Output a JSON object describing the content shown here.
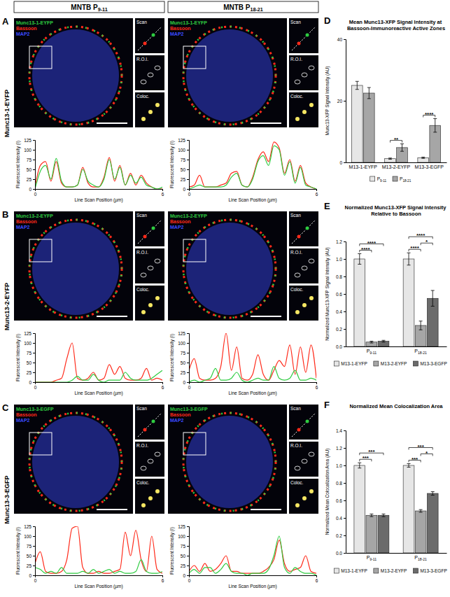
{
  "figure": {
    "columns": [
      "MNTB P9-11",
      "MNTB P18-21"
    ],
    "panels": [
      {
        "letter": "A",
        "row_label": "Munc13-1-EYFP",
        "channels": [
          {
            "name": "Munc13-1-EYFP",
            "color": "#2ecc40"
          },
          {
            "name": "Bassoon",
            "color": "#ff2a1a"
          },
          {
            "name": "MAP2",
            "color": "#3b4bff"
          }
        ],
        "insets": [
          "Scan",
          "R.O.I.",
          "Coloc."
        ]
      },
      {
        "letter": "B",
        "row_label": "Munc13-2-EYFP",
        "channels": [
          {
            "name": "Munc13-2-EYFP",
            "color": "#2ecc40"
          },
          {
            "name": "Bassoon",
            "color": "#ff2a1a"
          },
          {
            "name": "MAP2",
            "color": "#3b4bff"
          }
        ],
        "insets": [
          "Scan",
          "R.O.I.",
          "Coloc."
        ]
      },
      {
        "letter": "C",
        "row_label": "Munc13-3-EGFP",
        "channels": [
          {
            "name": "Munc13-3-EGFP",
            "color": "#2ecc40"
          },
          {
            "name": "Bassoon",
            "color": "#ff2a1a"
          },
          {
            "name": "MAP2",
            "color": "#3b4bff"
          }
        ],
        "insets": [
          "Scan",
          "R.O.I.",
          "Coloc."
        ]
      }
    ],
    "chart_letters": [
      "D",
      "E",
      "F"
    ]
  },
  "chart_data": [
    {
      "type": "line",
      "x_label": "Line Scan Position (µm)",
      "y_label": "Fluorescent Intensity (I)",
      "x": [
        0,
        0.25,
        0.5,
        0.75,
        1,
        1.25,
        1.5,
        1.75,
        2,
        2.25,
        2.5,
        2.75,
        3,
        3.25,
        3.5,
        3.75,
        4,
        4.25,
        4.5,
        4.75,
        5,
        5.25,
        5.5,
        5.75,
        6
      ],
      "series": [
        {
          "color": "#ff2a1a",
          "values": [
            5,
            60,
            70,
            20,
            70,
            15,
            5,
            5,
            10,
            55,
            15,
            5,
            5,
            30,
            80,
            20,
            60,
            10,
            40,
            10,
            35,
            15,
            5,
            0,
            0
          ]
        },
        {
          "color": "#2ecc40",
          "values": [
            0,
            45,
            60,
            25,
            78,
            20,
            5,
            5,
            10,
            50,
            20,
            10,
            5,
            25,
            75,
            25,
            55,
            10,
            35,
            15,
            30,
            10,
            5,
            0,
            5
          ]
        }
      ],
      "xlim": [
        0,
        6
      ],
      "xticks": [
        0,
        6
      ],
      "ylim": [
        0,
        125
      ],
      "yticks": [
        0,
        25,
        50,
        75,
        100,
        125
      ]
    },
    {
      "type": "line",
      "x_label": "Line Scan Position (µm)",
      "y_label": "Fluorescent Intensity (I)",
      "x": [
        0,
        0.25,
        0.5,
        0.75,
        1,
        1.25,
        1.5,
        1.75,
        2,
        2.25,
        2.5,
        2.75,
        3,
        3.25,
        3.5,
        3.75,
        4,
        4.25,
        4.5,
        4.75,
        5,
        5.25,
        5.5,
        5.75,
        6
      ],
      "series": [
        {
          "color": "#ff2a1a",
          "values": [
            5,
            10,
            35,
            5,
            5,
            5,
            10,
            15,
            40,
            45,
            10,
            5,
            30,
            75,
            95,
            70,
            120,
            105,
            40,
            75,
            20,
            60,
            15,
            5,
            0
          ]
        },
        {
          "color": "#2ecc40",
          "values": [
            0,
            5,
            10,
            5,
            5,
            5,
            5,
            10,
            30,
            40,
            10,
            5,
            25,
            70,
            85,
            60,
            110,
            100,
            35,
            70,
            15,
            55,
            10,
            5,
            0
          ]
        }
      ],
      "xlim": [
        0,
        6
      ],
      "xticks": [
        0,
        6
      ],
      "ylim": [
        0,
        125
      ],
      "yticks": [
        0,
        25,
        50,
        75,
        100,
        125
      ]
    },
    {
      "type": "line",
      "x_label": "Line Scan Position (µm)",
      "y_label": "Fluorescent Intensity (I)",
      "x": [
        0,
        0.25,
        0.5,
        0.75,
        1,
        1.25,
        1.5,
        1.75,
        2,
        2.25,
        2.5,
        2.75,
        3,
        3.25,
        3.5,
        3.75,
        4,
        4.25,
        4.5,
        4.75,
        5,
        5.25,
        5.5,
        5.75,
        6
      ],
      "series": [
        {
          "color": "#ff2a1a",
          "values": [
            0,
            0,
            0,
            0,
            5,
            10,
            60,
            100,
            10,
            5,
            10,
            25,
            5,
            10,
            45,
            20,
            40,
            10,
            5,
            5,
            10,
            35,
            5,
            10,
            5
          ]
        },
        {
          "color": "#2ecc40",
          "values": [
            0,
            0,
            0,
            0,
            0,
            0,
            0,
            5,
            15,
            5,
            5,
            20,
            5,
            0,
            5,
            5,
            5,
            25,
            10,
            5,
            5,
            5,
            10,
            20,
            30
          ]
        }
      ],
      "xlim": [
        0,
        6
      ],
      "xticks": [
        0,
        6
      ],
      "ylim": [
        0,
        125
      ],
      "yticks": [
        0,
        25,
        50,
        75,
        100,
        125
      ]
    },
    {
      "type": "line",
      "x_label": "Line Scan Position (µm)",
      "y_label": "Fluorescent Intensity (I)",
      "x": [
        0,
        0.25,
        0.5,
        0.75,
        1,
        1.25,
        1.5,
        1.75,
        2,
        2.25,
        2.5,
        2.75,
        3,
        3.25,
        3.5,
        3.75,
        4,
        4.25,
        4.5,
        4.75,
        5,
        5.25,
        5.5,
        5.75,
        6
      ],
      "series": [
        {
          "color": "#ff2a1a",
          "values": [
            30,
            60,
            10,
            5,
            5,
            10,
            40,
            125,
            30,
            90,
            10,
            5,
            20,
            70,
            20,
            5,
            30,
            55,
            40,
            95,
            20,
            90,
            25,
            95,
            10
          ]
        },
        {
          "color": "#2ecc40",
          "values": [
            0,
            5,
            0,
            5,
            10,
            35,
            5,
            5,
            10,
            25,
            5,
            0,
            5,
            10,
            5,
            5,
            40,
            10,
            5,
            10,
            30,
            5,
            5,
            10,
            5
          ]
        }
      ],
      "xlim": [
        0,
        6
      ],
      "xticks": [
        0,
        6
      ],
      "ylim": [
        0,
        125
      ],
      "yticks": [
        0,
        25,
        50,
        75,
        100,
        125
      ]
    },
    {
      "type": "line",
      "x_label": "Line Scan Position (µm)",
      "y_label": "Fluorescent Intensity (I)",
      "x": [
        0,
        0.25,
        0.5,
        0.75,
        1,
        1.25,
        1.5,
        1.75,
        2,
        2.25,
        2.5,
        2.75,
        3,
        3.25,
        3.5,
        3.75,
        4,
        4.25,
        4.5,
        4.75,
        5,
        5.25,
        5.5,
        5.75,
        6
      ],
      "series": [
        {
          "color": "#ff2a1a",
          "values": [
            30,
            60,
            10,
            5,
            5,
            10,
            40,
            120,
            125,
            20,
            5,
            5,
            10,
            5,
            5,
            10,
            15,
            110,
            50,
            115,
            40,
            10,
            100,
            15,
            5
          ]
        },
        {
          "color": "#2ecc40",
          "values": [
            20,
            15,
            5,
            10,
            5,
            20,
            5,
            5,
            5,
            10,
            5,
            15,
            5,
            10,
            15,
            5,
            10,
            5,
            5,
            10,
            40,
            10,
            5,
            5,
            10
          ]
        }
      ],
      "xlim": [
        0,
        6
      ],
      "xticks": [
        0,
        6
      ],
      "ylim": [
        0,
        125
      ],
      "yticks": [
        0,
        25,
        50,
        75,
        100,
        125
      ]
    },
    {
      "type": "line",
      "x_label": "Line Scan Position (µm)",
      "y_label": "Fluorescent Intensity (I)",
      "x": [
        0,
        0.25,
        0.5,
        0.75,
        1,
        1.25,
        1.5,
        1.75,
        2,
        2.25,
        2.5,
        2.75,
        3,
        3.25,
        3.5,
        3.75,
        4,
        4.25,
        4.5,
        4.75,
        5,
        5.25,
        5.5,
        5.75,
        6
      ],
      "series": [
        {
          "color": "#ff2a1a",
          "values": [
            10,
            25,
            10,
            30,
            10,
            15,
            30,
            50,
            10,
            10,
            5,
            5,
            5,
            5,
            10,
            20,
            40,
            90,
            30,
            10,
            15,
            20,
            50,
            10,
            5
          ]
        },
        {
          "color": "#2ecc40",
          "values": [
            5,
            15,
            5,
            20,
            20,
            5,
            15,
            30,
            10,
            5,
            5,
            0,
            5,
            5,
            5,
            15,
            50,
            100,
            20,
            5,
            20,
            10,
            5,
            5,
            0
          ]
        }
      ],
      "xlim": [
        0,
        6
      ],
      "xticks": [
        0,
        6
      ],
      "ylim": [
        0,
        125
      ],
      "yticks": [
        0,
        25,
        50,
        75,
        100,
        125
      ]
    },
    {
      "type": "bar",
      "title": "Mean Munc13-XFP Signal Intensity at Bassoon-Immunoreactive Active Zones",
      "y_label": "Munc13-XFP Signal Intensity (AU)",
      "categories": [
        "M13-1-EYFP",
        "M13-2-EYFP",
        "M13-3-EGFP"
      ],
      "series": [
        {
          "name": "P9-11",
          "color": "#e6e6e6",
          "values": [
            25,
            1.2,
            1.5
          ],
          "errors": [
            1.3,
            0.2,
            0.2
          ]
        },
        {
          "name": "P18-21",
          "color": "#a6a6a6",
          "values": [
            22.5,
            4.8,
            12
          ],
          "errors": [
            1.8,
            1.2,
            2.2
          ]
        }
      ],
      "ylim": [
        0,
        40
      ],
      "yticks": [
        0,
        20,
        40
      ],
      "legend": "bottom",
      "annotations": [
        {
          "text": "**",
          "category": 1,
          "pair": [
            0,
            1
          ]
        },
        {
          "text": "****",
          "category": 2,
          "pair": [
            0,
            1
          ]
        }
      ]
    },
    {
      "type": "bar",
      "title": "Normalized Munc13-XFP Signal Intensity Relative to Bassoon",
      "y_label": "Normalized Munc13-XFP Signal Intensity (AU)",
      "categories": [
        "P9-11",
        "P18-21"
      ],
      "series": [
        {
          "name": "M13-1-EYFP",
          "color": "#e6e6e6",
          "values": [
            1.0,
            1.0
          ],
          "errors": [
            0.06,
            0.07
          ]
        },
        {
          "name": "M13-2-EYFP",
          "color": "#a6a6a6",
          "values": [
            0.05,
            0.24
          ],
          "errors": [
            0.01,
            0.05
          ]
        },
        {
          "name": "M13-3-EGFP",
          "color": "#6b6b6b",
          "values": [
            0.06,
            0.55
          ],
          "errors": [
            0.01,
            0.09
          ]
        }
      ],
      "ylim": [
        0,
        1.2
      ],
      "yticks": [
        {
          "value": 0,
          "label": "0.0"
        },
        0.2,
        0.4,
        0.6,
        0.8,
        {
          "value": 1,
          "label": "1.0"
        },
        1.2
      ],
      "legend": "bottom",
      "annotations": [
        {
          "text": "****",
          "category": 0,
          "pair": [
            0,
            1
          ]
        },
        {
          "text": "****",
          "category": 0,
          "pair": [
            0,
            2
          ]
        },
        {
          "text": "****",
          "category": 1,
          "pair": [
            0,
            1
          ]
        },
        {
          "text": "*",
          "category": 1,
          "pair": [
            1,
            2
          ]
        },
        {
          "text": "****",
          "category": 1,
          "pair": [
            0,
            2
          ]
        }
      ]
    },
    {
      "type": "bar",
      "title": "Normalized Mean Colocalization Area",
      "y_label": "Normalized Mean Colocalization Area (AU)",
      "categories": [
        "P9-11",
        "P18-21"
      ],
      "series": [
        {
          "name": "M13-1-EYFP",
          "color": "#e6e6e6",
          "values": [
            1.0,
            1.0
          ],
          "errors": [
            0.03,
            0.02
          ]
        },
        {
          "name": "M13-2-EYFP",
          "color": "#a6a6a6",
          "values": [
            0.43,
            0.48
          ],
          "errors": [
            0.015,
            0.015
          ]
        },
        {
          "name": "M13-3-EGFP",
          "color": "#6b6b6b",
          "values": [
            0.43,
            0.68
          ],
          "errors": [
            0.015,
            0.02
          ]
        }
      ],
      "ylim": [
        0,
        1.4
      ],
      "yticks": [
        {
          "value": 0,
          "label": "0.0"
        },
        0.2,
        0.4,
        0.6,
        0.8,
        {
          "value": 1,
          "label": "1.0"
        },
        1.2,
        1.4
      ],
      "legend": "bottom",
      "annotations": [
        {
          "text": "***",
          "category": 0,
          "pair": [
            0,
            1
          ]
        },
        {
          "text": "***",
          "category": 0,
          "pair": [
            0,
            2
          ]
        },
        {
          "text": "***",
          "category": 1,
          "pair": [
            0,
            1
          ]
        },
        {
          "text": "*",
          "category": 1,
          "pair": [
            1,
            2
          ]
        },
        {
          "text": "***",
          "category": 1,
          "pair": [
            0,
            2
          ]
        }
      ]
    }
  ]
}
